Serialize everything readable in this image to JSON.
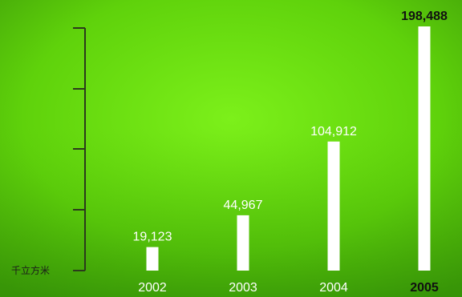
{
  "chart_data": {
    "type": "bar",
    "categories": [
      "2002",
      "2003",
      "2004",
      "2005"
    ],
    "values": [
      19123,
      44967,
      104912,
      198488
    ],
    "value_labels": [
      "19,123",
      "44,967",
      "104,912",
      "198,488"
    ],
    "unit": "千立方米",
    "grid": false,
    "legend": "none",
    "colors": {
      "background": "#67e00a",
      "bar": "#ffffff",
      "axis": "#2b3a1c",
      "highlight_label": "#111111"
    }
  }
}
